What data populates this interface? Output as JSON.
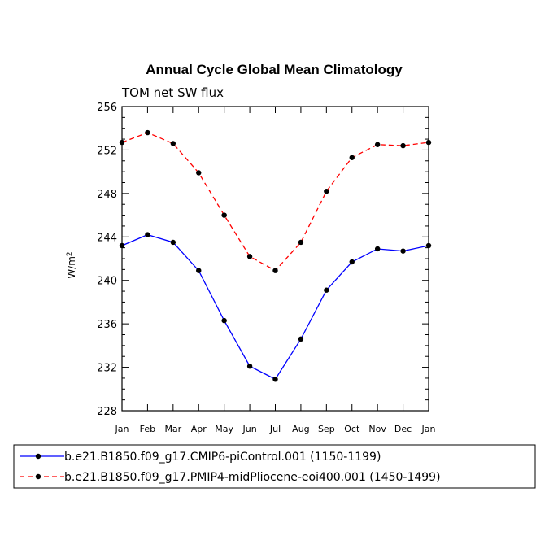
{
  "chart_data": {
    "type": "line",
    "title": "Annual Cycle Global Mean Climatology",
    "subtitle": "TOM net SW flux",
    "ylabel": "W/m",
    "ylabel_sup": "2",
    "categories": [
      "Jan",
      "Feb",
      "Mar",
      "Apr",
      "May",
      "Jun",
      "Jul",
      "Aug",
      "Sep",
      "Oct",
      "Nov",
      "Dec",
      "Jan"
    ],
    "ylim": [
      228,
      256
    ],
    "yticks": [
      228,
      232,
      236,
      240,
      244,
      248,
      252,
      256
    ],
    "grid": false,
    "legend_position": "bottom",
    "series": [
      {
        "name": "b.e21.B1850.f09_g17.CMIP6-piControl.001 (1150-1199)",
        "color": "#0000ff",
        "dash": "solid",
        "values": [
          243.2,
          244.2,
          243.5,
          240.9,
          236.3,
          232.1,
          230.9,
          234.6,
          239.1,
          241.7,
          242.9,
          242.7,
          243.2
        ]
      },
      {
        "name": "b.e21.B1850.f09_g17.PMIP4-midPliocene-eoi400.001 (1450-1499)",
        "color": "#ff0000",
        "dash": "dashed",
        "values": [
          252.7,
          253.6,
          252.6,
          249.9,
          246.0,
          242.2,
          240.9,
          243.5,
          248.2,
          251.3,
          252.5,
          252.4,
          252.7
        ]
      }
    ]
  }
}
